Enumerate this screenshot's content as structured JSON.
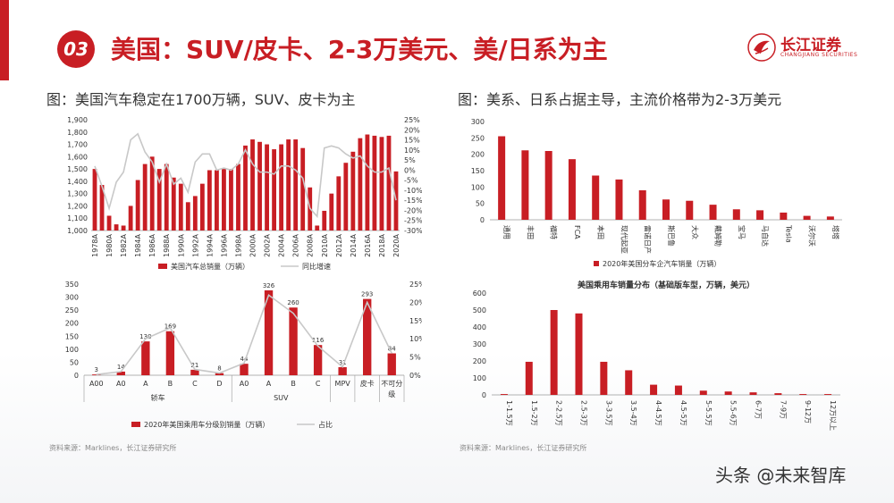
{
  "header": {
    "number": "03",
    "title": "美国：SUV/皮卡、2-3万美元、美/日系为主",
    "logo_cn": "长江证券",
    "logo_en": "CHANGJIANG SECURITIES"
  },
  "left_subtitle": "图：美国汽车稳定在1700万辆，SUV、皮卡为主",
  "right_subtitle": "图：美系、日系占据主导，主流价格带为2-3万美元",
  "source_left": "资料来源：Marklines，长江证券研究所",
  "source_right": "资料来源：Marklines，长江证券研究所",
  "watermark": "头条 @未来智库",
  "colors": {
    "accent": "#c81e24",
    "line": "#c8c8c8"
  },
  "chart_data": [
    {
      "type": "bar",
      "categories": [
        "1978A",
        "1979A",
        "1980A",
        "1981A",
        "1982A",
        "1983A",
        "1984A",
        "1985A",
        "1986A",
        "1987A",
        "1988A",
        "1989A",
        "1990A",
        "1991A",
        "1992A",
        "1993A",
        "1994A",
        "1995A",
        "1996A",
        "1997A",
        "1998A",
        "1999A",
        "2000A",
        "2001A",
        "2002A",
        "2003A",
        "2004A",
        "2005A",
        "2006A",
        "2007A",
        "2008A",
        "2009A",
        "2010A",
        "2011A",
        "2012A",
        "2013A",
        "2014A",
        "2015A",
        "2016A",
        "2017A",
        "2018A",
        "2019A",
        "2020A"
      ],
      "tick_labels": [
        "1978A",
        "1980A",
        "1982A",
        "1984A",
        "1986A",
        "1988A",
        "1990A",
        "1992A",
        "1994A",
        "1996A",
        "1998A",
        "2000A",
        "2002A",
        "2004A",
        "2006A",
        "2008A",
        "2010A",
        "2012A",
        "2014A",
        "2016A",
        "2018A",
        "2020A"
      ],
      "series": [
        {
          "name": "美国汽车总销量（万辆）",
          "type": "bar",
          "axis": "left",
          "values": [
            1500,
            1370,
            1120,
            1050,
            1040,
            1200,
            1410,
            1540,
            1600,
            1500,
            1540,
            1430,
            1380,
            1230,
            1280,
            1380,
            1490,
            1490,
            1500,
            1500,
            1540,
            1690,
            1740,
            1720,
            1700,
            1660,
            1700,
            1740,
            1740,
            1670,
            1350,
            1040,
            1160,
            1300,
            1440,
            1550,
            1640,
            1750,
            1780,
            1770,
            1760,
            1770,
            1480
          ]
        },
        {
          "name": "同比增速",
          "type": "line",
          "axis": "right",
          "values": [
            0.02,
            -0.08,
            -0.19,
            -0.06,
            -0.01,
            0.15,
            0.18,
            0.09,
            0.04,
            -0.06,
            0.03,
            -0.07,
            -0.04,
            -0.11,
            0.04,
            0.08,
            0.08,
            0.0,
            0.01,
            0.0,
            0.03,
            0.1,
            0.03,
            -0.01,
            -0.01,
            -0.02,
            0.02,
            0.02,
            0.0,
            -0.04,
            -0.19,
            -0.23,
            0.11,
            0.12,
            0.11,
            0.08,
            0.06,
            0.07,
            0.02,
            -0.01,
            -0.01,
            0.01,
            -0.15
          ]
        }
      ],
      "ylim_left": [
        1000,
        1900
      ],
      "yticks_left": [
        "1,000",
        "1,100",
        "1,200",
        "1,300",
        "1,400",
        "1,500",
        "1,600",
        "1,700",
        "1,800",
        "1,900"
      ],
      "ylim_right": [
        -0.3,
        0.25
      ],
      "yticks_right": [
        "-30%",
        "-25%",
        "-20%",
        "-15%",
        "-10%",
        "-5%",
        "0%",
        "5%",
        "10%",
        "15%",
        "20%",
        "25%"
      ],
      "legend": [
        "美国汽车总销量（万辆）",
        "同比增速"
      ],
      "legend_position": "bottom"
    },
    {
      "type": "bar",
      "categories": [
        "A00",
        "A0",
        "A",
        "B",
        "C",
        "D",
        "A0",
        "A",
        "B",
        "C",
        "MPV",
        "皮卡",
        "不可分级"
      ],
      "group_labels": [
        {
          "label": "轿车",
          "start": 0,
          "end": 5
        },
        {
          "label": "SUV",
          "start": 6,
          "end": 9
        },
        {
          "label": "",
          "start": 10,
          "end": 10
        },
        {
          "label": "",
          "start": 11,
          "end": 11
        },
        {
          "label": "",
          "start": 12,
          "end": 12
        }
      ],
      "series": [
        {
          "name": "2020年美国乘用车分级别销量（万辆）",
          "type": "bar",
          "axis": "left",
          "values": [
            3,
            14,
            130,
            169,
            21,
            8,
            44,
            326,
            260,
            116,
            31,
            293,
            84
          ]
        },
        {
          "name": "占比",
          "type": "line",
          "axis": "right",
          "values": [
            0.002,
            0.01,
            0.1,
            0.13,
            0.016,
            0.006,
            0.033,
            0.22,
            0.17,
            0.08,
            0.023,
            0.2,
            0.06
          ]
        }
      ],
      "data_labels": [
        "3",
        "14",
        "130",
        "169",
        "21",
        "8",
        "44",
        "326",
        "260",
        "116",
        "31",
        "293",
        "84"
      ],
      "ylim_left": [
        0,
        350
      ],
      "yticks_left": [
        "0",
        "50",
        "100",
        "150",
        "200",
        "250",
        "300",
        "350"
      ],
      "ylim_right": [
        0,
        0.25
      ],
      "yticks_right": [
        "0%",
        "5%",
        "10%",
        "15%",
        "20%",
        "25%"
      ],
      "legend": [
        "2020年美国乘用车分级别销量（万辆）",
        "占比"
      ],
      "legend_position": "bottom"
    },
    {
      "type": "bar",
      "categories": [
        "通用",
        "丰田",
        "福特",
        "FCA",
        "本田",
        "现代起亚",
        "雷诺日产",
        "斯巴鲁",
        "大众",
        "戴姆勒",
        "宝马",
        "马自达",
        "Tesla",
        "沃尔沃",
        "塔塔"
      ],
      "series": [
        {
          "name": "2020年美国分车企汽车销量（万辆）",
          "values": [
            255,
            212,
            210,
            185,
            135,
            123,
            90,
            62,
            58,
            46,
            32,
            29,
            22,
            12,
            10
          ]
        }
      ],
      "ylim": [
        0,
        300
      ],
      "yticks": [
        "0",
        "50",
        "100",
        "150",
        "200",
        "250",
        "300"
      ],
      "legend": [
        "2020年美国分车企汽车销量（万辆）"
      ],
      "legend_position": "bottom"
    },
    {
      "type": "bar",
      "title": "美国乘用车销量分布（基础版车型，万辆，美元）",
      "categories": [
        "1-1.5万",
        "1.5-2万",
        "2-2.5万",
        "2.5-3万",
        "3-3.5万",
        "3.5-4万",
        "4-4.5万",
        "4.5-5万",
        "5-5.5万",
        "5.5-6万",
        "6-7万",
        "7-9万",
        "9-12万",
        "12万以上"
      ],
      "series": [
        {
          "name": "",
          "values": [
            5,
            195,
            500,
            480,
            195,
            145,
            60,
            55,
            25,
            20,
            15,
            10,
            5,
            5
          ]
        }
      ],
      "ylim": [
        0,
        600
      ],
      "yticks": [
        "0",
        "100",
        "200",
        "300",
        "400",
        "500",
        "600"
      ]
    }
  ]
}
